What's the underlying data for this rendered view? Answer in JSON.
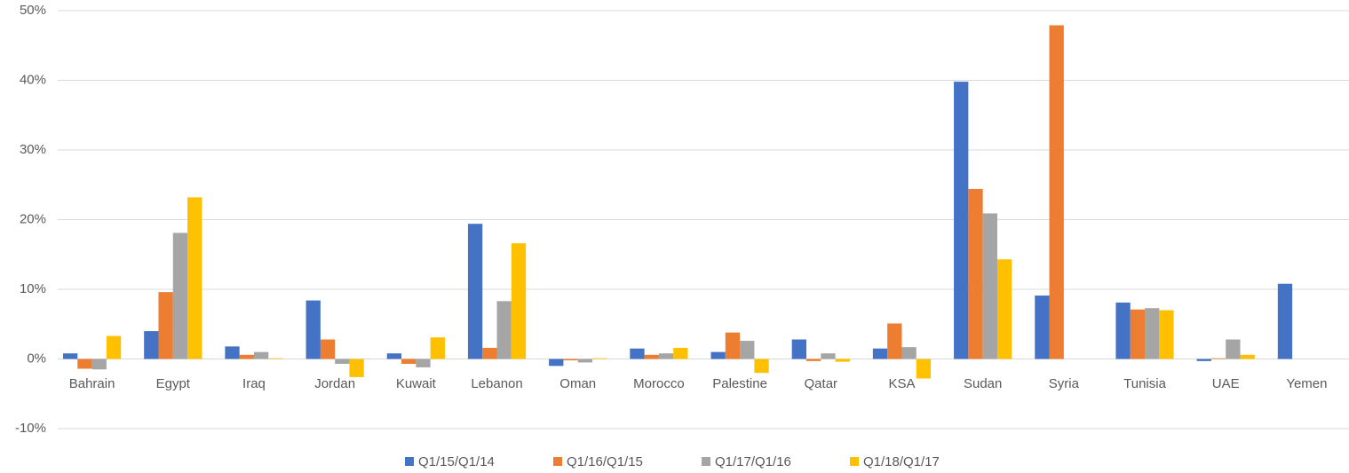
{
  "chart_data": {
    "type": "bar",
    "categories": [
      "Bahrain",
      "Egypt",
      "Iraq",
      "Jordan",
      "Kuwait",
      "Lebanon",
      "Oman",
      "Morocco",
      "Palestine",
      "Qatar",
      "KSA",
      "Sudan",
      "Syria",
      "Tunisia",
      "UAE",
      "Yemen"
    ],
    "series": [
      {
        "name": "Q1/15/Q1/14",
        "color": "#4472c4",
        "values": [
          0.8,
          4.0,
          1.8,
          8.4,
          0.8,
          19.4,
          -1.0,
          1.5,
          1.0,
          2.8,
          1.5,
          39.8,
          9.1,
          8.1,
          -0.3,
          10.8
        ]
      },
      {
        "name": "Q1/16/Q1/15",
        "color": "#ed7d31",
        "values": [
          -1.4,
          9.6,
          0.6,
          2.8,
          -0.7,
          1.6,
          -0.2,
          0.6,
          3.8,
          -0.3,
          5.1,
          24.4,
          47.9,
          7.1,
          0.1,
          null
        ]
      },
      {
        "name": "Q1/17/Q1/16",
        "color": "#a5a5a5",
        "values": [
          -1.5,
          18.1,
          1.0,
          -0.7,
          -1.2,
          8.3,
          -0.5,
          0.8,
          2.6,
          0.8,
          1.7,
          20.9,
          null,
          7.3,
          2.8,
          null
        ]
      },
      {
        "name": "Q1/18/Q1/17",
        "color": "#ffc000",
        "values": [
          3.3,
          23.2,
          0.1,
          -2.6,
          3.1,
          16.6,
          0.1,
          1.6,
          -2.0,
          -0.4,
          -2.8,
          14.3,
          null,
          7.0,
          0.6,
          null
        ]
      }
    ],
    "ylim": [
      -10,
      50
    ],
    "yticks": [
      {
        "value": -10,
        "label": "-10%"
      },
      {
        "value": 0,
        "label": "0%"
      },
      {
        "value": 10,
        "label": "10%"
      },
      {
        "value": 20,
        "label": "20%"
      },
      {
        "value": 30,
        "label": "30%"
      },
      {
        "value": 40,
        "label": "40%"
      },
      {
        "value": 50,
        "label": "50%"
      }
    ],
    "grid": true,
    "legend": "bottom"
  }
}
